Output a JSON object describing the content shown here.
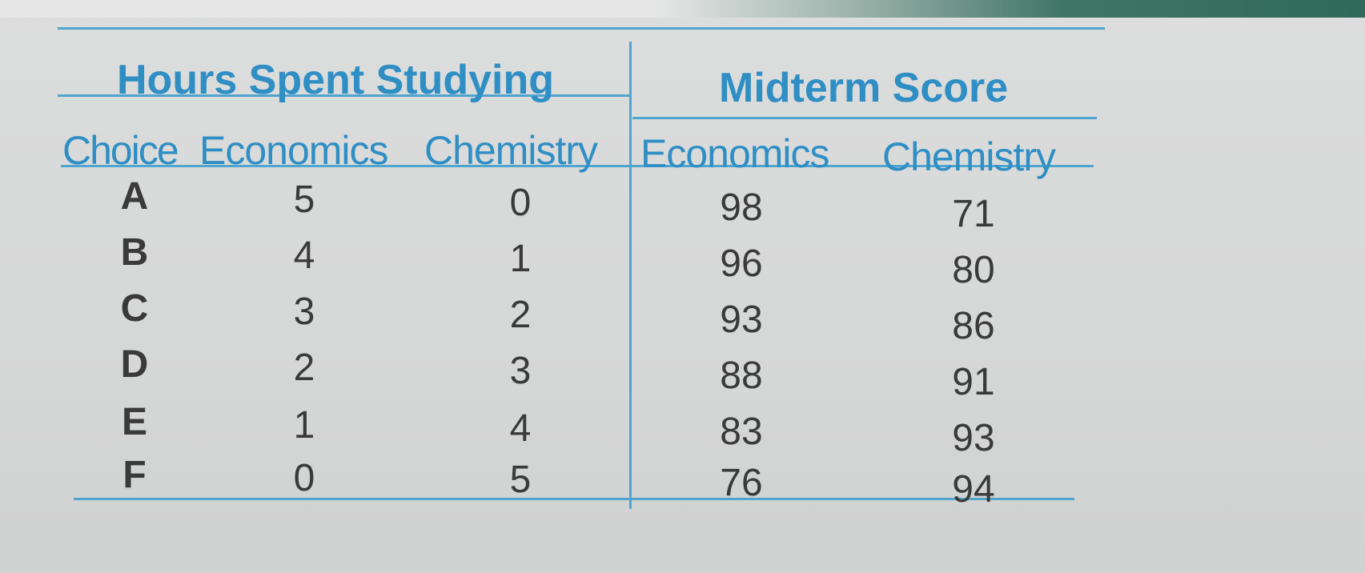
{
  "table": {
    "group_headers": [
      "Hours Spent Studying",
      "Midterm Score"
    ],
    "column_headers": [
      "Choice",
      "Economics",
      "Chemistry",
      "Economics",
      "Chemistry"
    ],
    "rows": [
      [
        "A",
        "5",
        "0",
        "98",
        "71"
      ],
      [
        "B",
        "4",
        "1",
        "96",
        "80"
      ],
      [
        "C",
        "3",
        "2",
        "93",
        "86"
      ],
      [
        "D",
        "2",
        "3",
        "88",
        "91"
      ],
      [
        "E",
        "1",
        "4",
        "83",
        "93"
      ],
      [
        "F",
        "0",
        "5",
        "76",
        "94"
      ]
    ]
  },
  "colors": {
    "header_text": "#2f8ec4",
    "rule": "#4fa5cf",
    "body_text": "#3a3a3a"
  }
}
